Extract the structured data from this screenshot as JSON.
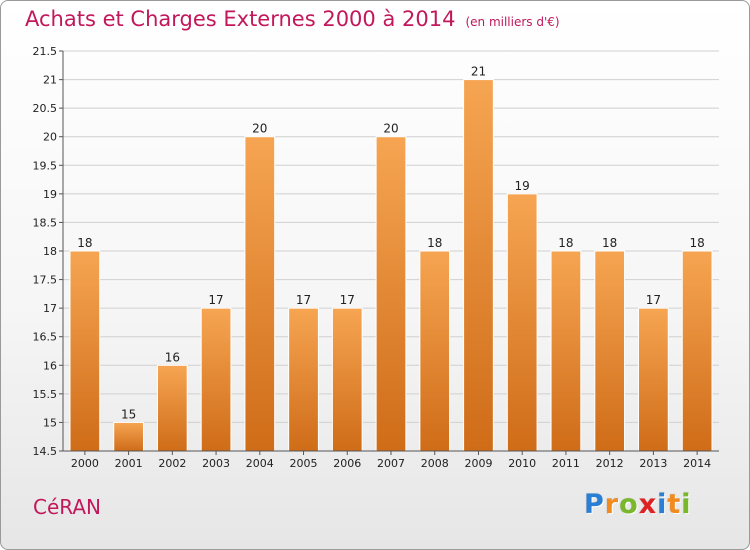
{
  "header": {
    "title": "Achats et Charges Externes 2000 à 2014",
    "unit": "(en milliers d'€)"
  },
  "footer": {
    "town": "CéRAN",
    "logo_letters": [
      "P",
      "r",
      "o",
      "x",
      "i",
      "t",
      "i"
    ],
    "logo_colors": [
      "#2a7fd4",
      "#f28a1e",
      "#7ab82b",
      "#e02121",
      "#2a7fd4",
      "#f28a1e",
      "#7ab82b"
    ]
  },
  "colors": {
    "title": "#c2185b",
    "bar_light": "#f6a552",
    "bar_dark": "#cf6c18",
    "grid": "#d0d0d0",
    "axis": "#555555"
  },
  "chart_data": {
    "type": "bar",
    "title": "Achats et Charges Externes 2000 à 2014",
    "subtitle": "(en milliers d'€)",
    "categories": [
      "2000",
      "2001",
      "2002",
      "2003",
      "2004",
      "2005",
      "2006",
      "2007",
      "2008",
      "2009",
      "2010",
      "2011",
      "2012",
      "2013",
      "2014"
    ],
    "values": [
      18,
      15,
      16,
      17,
      20,
      17,
      17,
      20,
      18,
      21,
      19,
      18,
      18,
      17,
      18
    ],
    "data_labels": [
      "18",
      "15",
      "16",
      "17",
      "20",
      "17",
      "17",
      "20",
      "18",
      "21",
      "19",
      "18",
      "18",
      "17",
      "18"
    ],
    "ylim": [
      14.5,
      21.5
    ],
    "yticks": [
      14.5,
      15,
      15.5,
      16,
      16.5,
      17,
      17.5,
      18,
      18.5,
      19,
      19.5,
      20,
      20.5,
      21,
      21.5
    ],
    "ytick_labels": [
      "14.5",
      "15",
      "15.5",
      "16",
      "16.5",
      "17",
      "17.5",
      "18",
      "18.5",
      "19",
      "19.5",
      "20",
      "20.5",
      "21",
      "21.5"
    ],
    "grid": true,
    "xlabel": "",
    "ylabel": ""
  }
}
